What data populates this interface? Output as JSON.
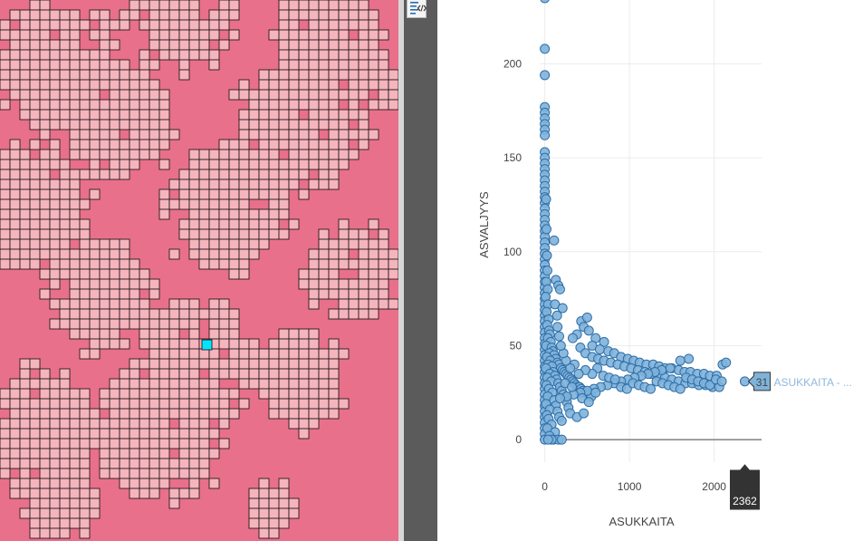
{
  "map": {
    "background_color": "#e8708a",
    "cell_fill": "#f5b5bd",
    "cell_stroke": "#2b1a1e",
    "selected_cell_color": "#00e5ff"
  },
  "toolbar": {
    "code_icon": "code-view-icon"
  },
  "chart_data": {
    "type": "scatter",
    "xlabel": "ASUKKAITA",
    "ylabel": "ASVALJYYS",
    "xlim": [
      -60,
      2560
    ],
    "ylim": [
      -12,
      234
    ],
    "x_ticks": [
      0,
      1000,
      2000
    ],
    "x_tick_labels": [
      "0",
      "1000",
      "2000"
    ],
    "y_ticks": [
      0,
      50,
      100,
      150,
      200
    ],
    "y_tick_labels": [
      "0",
      "50",
      "100",
      "150",
      "200"
    ],
    "grid": true,
    "marker_color": "#7fb3da",
    "marker_edge": "#2f6fa8",
    "hover": {
      "point": {
        "x": 2362,
        "y": 31
      },
      "x_label": "2362",
      "y_label": "31",
      "series_label": "ASUKKAITA - ..."
    },
    "points": [
      [
        0,
        235
      ],
      [
        0,
        208
      ],
      [
        0,
        194
      ],
      [
        0,
        177
      ],
      [
        0,
        174
      ],
      [
        0,
        171
      ],
      [
        0,
        168
      ],
      [
        0,
        165
      ],
      [
        0,
        162
      ],
      [
        0,
        153
      ],
      [
        0,
        150
      ],
      [
        0,
        147
      ],
      [
        0,
        144
      ],
      [
        0,
        141
      ],
      [
        0,
        138
      ],
      [
        0,
        135
      ],
      [
        0,
        132
      ],
      [
        0,
        129
      ],
      [
        0,
        126
      ],
      [
        0,
        123
      ],
      [
        0,
        120
      ],
      [
        0,
        117
      ],
      [
        0,
        114
      ],
      [
        0,
        111
      ],
      [
        0,
        108
      ],
      [
        0,
        105
      ],
      [
        0,
        102
      ],
      [
        0,
        99
      ],
      [
        0,
        96
      ],
      [
        0,
        93
      ],
      [
        0,
        90
      ],
      [
        0,
        87
      ],
      [
        0,
        84
      ],
      [
        0,
        81
      ],
      [
        0,
        78
      ],
      [
        0,
        75
      ],
      [
        0,
        72
      ],
      [
        0,
        69
      ],
      [
        0,
        66
      ],
      [
        0,
        63
      ],
      [
        0,
        60
      ],
      [
        0,
        57
      ],
      [
        0,
        54
      ],
      [
        0,
        51
      ],
      [
        0,
        48
      ],
      [
        0,
        45
      ],
      [
        0,
        42
      ],
      [
        0,
        39
      ],
      [
        0,
        36
      ],
      [
        0,
        33
      ],
      [
        0,
        30
      ],
      [
        0,
        27
      ],
      [
        0,
        24
      ],
      [
        0,
        21
      ],
      [
        0,
        18
      ],
      [
        0,
        15
      ],
      [
        0,
        12
      ],
      [
        0,
        9
      ],
      [
        0,
        6
      ],
      [
        0,
        3
      ],
      [
        0,
        0
      ],
      [
        15,
        128
      ],
      [
        20,
        112
      ],
      [
        25,
        98
      ],
      [
        30,
        90
      ],
      [
        18,
        84
      ],
      [
        35,
        80
      ],
      [
        10,
        76
      ],
      [
        40,
        72
      ],
      [
        22,
        68
      ],
      [
        45,
        64
      ],
      [
        28,
        61
      ],
      [
        50,
        58
      ],
      [
        60,
        56
      ],
      [
        36,
        54
      ],
      [
        70,
        52
      ],
      [
        15,
        50
      ],
      [
        80,
        49
      ],
      [
        95,
        47
      ],
      [
        55,
        46
      ],
      [
        110,
        45
      ],
      [
        25,
        44
      ],
      [
        130,
        43
      ],
      [
        65,
        42
      ],
      [
        150,
        41
      ],
      [
        40,
        40
      ],
      [
        170,
        40
      ],
      [
        85,
        39
      ],
      [
        190,
        38
      ],
      [
        12,
        38
      ],
      [
        210,
        37
      ],
      [
        100,
        36
      ],
      [
        230,
        36
      ],
      [
        60,
        35
      ],
      [
        250,
        35
      ],
      [
        120,
        34
      ],
      [
        270,
        34
      ],
      [
        30,
        33
      ],
      [
        290,
        33
      ],
      [
        140,
        32
      ],
      [
        310,
        32
      ],
      [
        75,
        31
      ],
      [
        330,
        31
      ],
      [
        160,
        30
      ],
      [
        350,
        30
      ],
      [
        20,
        29
      ],
      [
        370,
        29
      ],
      [
        180,
        28
      ],
      [
        390,
        28
      ],
      [
        50,
        27
      ],
      [
        410,
        28
      ],
      [
        200,
        26
      ],
      [
        430,
        27
      ],
      [
        90,
        25
      ],
      [
        450,
        26
      ],
      [
        220,
        24
      ],
      [
        470,
        25
      ],
      [
        35,
        23
      ],
      [
        490,
        25
      ],
      [
        240,
        22
      ],
      [
        510,
        24
      ],
      [
        110,
        21
      ],
      [
        530,
        24
      ],
      [
        260,
        20
      ],
      [
        550,
        23
      ],
      [
        15,
        19
      ],
      [
        130,
        18
      ],
      [
        280,
        17
      ],
      [
        60,
        16
      ],
      [
        150,
        15
      ],
      [
        300,
        14
      ],
      [
        25,
        13
      ],
      [
        170,
        12
      ],
      [
        45,
        11
      ],
      [
        200,
        10
      ],
      [
        80,
        8
      ],
      [
        30,
        6
      ],
      [
        120,
        4
      ],
      [
        55,
        2
      ],
      [
        100,
        0
      ],
      [
        160,
        0
      ],
      [
        200,
        0
      ],
      [
        80,
        0
      ],
      [
        40,
        0
      ],
      [
        110,
        106
      ],
      [
        130,
        85
      ],
      [
        160,
        82
      ],
      [
        180,
        80
      ],
      [
        120,
        72
      ],
      [
        210,
        70
      ],
      [
        145,
        66
      ],
      [
        430,
        63
      ],
      [
        500,
        65
      ],
      [
        460,
        60
      ],
      [
        520,
        58
      ],
      [
        380,
        56
      ],
      [
        600,
        54
      ],
      [
        700,
        52
      ],
      [
        330,
        54
      ],
      [
        560,
        50
      ],
      [
        650,
        48
      ],
      [
        750,
        47
      ],
      [
        420,
        49
      ],
      [
        820,
        46
      ],
      [
        900,
        44
      ],
      [
        480,
        46
      ],
      [
        980,
        43
      ],
      [
        1050,
        42
      ],
      [
        560,
        44
      ],
      [
        1120,
        41
      ],
      [
        1200,
        40
      ],
      [
        630,
        43
      ],
      [
        1280,
        40
      ],
      [
        1350,
        39
      ],
      [
        700,
        42
      ],
      [
        1420,
        38
      ],
      [
        1500,
        38
      ],
      [
        780,
        41
      ],
      [
        1580,
        37
      ],
      [
        1650,
        36
      ],
      [
        860,
        40
      ],
      [
        1720,
        36
      ],
      [
        1800,
        35
      ],
      [
        940,
        39
      ],
      [
        1880,
        35
      ],
      [
        1950,
        34
      ],
      [
        1020,
        38
      ],
      [
        2030,
        34
      ],
      [
        2100,
        40
      ],
      [
        1100,
        37
      ],
      [
        2140,
        41
      ],
      [
        1180,
        36
      ],
      [
        1260,
        35
      ],
      [
        1340,
        34
      ],
      [
        1420,
        33
      ],
      [
        1500,
        32
      ],
      [
        1580,
        31
      ],
      [
        1660,
        30
      ],
      [
        1740,
        30
      ],
      [
        1820,
        29
      ],
      [
        1900,
        29
      ],
      [
        1980,
        28
      ],
      [
        2060,
        28
      ],
      [
        1700,
        43
      ],
      [
        1600,
        42
      ],
      [
        1480,
        38
      ],
      [
        1380,
        37
      ],
      [
        1300,
        36
      ],
      [
        1220,
        35
      ],
      [
        1140,
        34
      ],
      [
        1060,
        33
      ],
      [
        980,
        32
      ],
      [
        900,
        31
      ],
      [
        820,
        30
      ],
      [
        740,
        29
      ],
      [
        660,
        28
      ],
      [
        580,
        27
      ],
      [
        500,
        26
      ],
      [
        420,
        25
      ],
      [
        340,
        24
      ],
      [
        260,
        23
      ],
      [
        180,
        22
      ],
      [
        620,
        38
      ],
      [
        690,
        34
      ],
      [
        760,
        33
      ],
      [
        830,
        32
      ],
      [
        900,
        28
      ],
      [
        970,
        27
      ],
      [
        1040,
        30
      ],
      [
        1110,
        29
      ],
      [
        1180,
        28
      ],
      [
        1250,
        27
      ],
      [
        1320,
        31
      ],
      [
        1390,
        30
      ],
      [
        1460,
        29
      ],
      [
        1530,
        28
      ],
      [
        1600,
        27
      ],
      [
        1670,
        33
      ],
      [
        1740,
        32
      ],
      [
        1810,
        31
      ],
      [
        1880,
        30
      ],
      [
        1950,
        29
      ],
      [
        2020,
        32
      ],
      [
        2090,
        31
      ],
      [
        560,
        35
      ],
      [
        480,
        37
      ],
      [
        400,
        35
      ],
      [
        350,
        40
      ],
      [
        300,
        38
      ],
      [
        250,
        42
      ],
      [
        220,
        46
      ],
      [
        190,
        50
      ],
      [
        170,
        55
      ],
      [
        150,
        60
      ],
      [
        240,
        30
      ],
      [
        320,
        28
      ],
      [
        440,
        22
      ],
      [
        520,
        20
      ],
      [
        380,
        12
      ],
      [
        460,
        14
      ],
      [
        600,
        25
      ],
      [
        2362,
        31
      ]
    ]
  }
}
